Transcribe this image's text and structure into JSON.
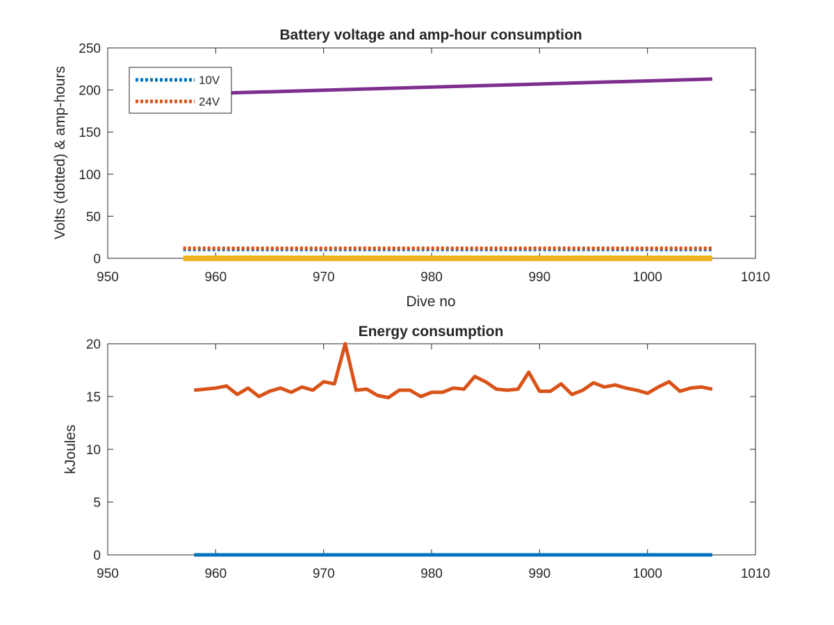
{
  "chart_data": [
    {
      "type": "line",
      "title": "Battery voltage and amp-hour consumption",
      "xlabel": "Dive no",
      "ylabel": "Volts (dotted) & amp-hours",
      "xlim": [
        950,
        1010
      ],
      "ylim": [
        0,
        250
      ],
      "xticks": [
        950,
        960,
        970,
        980,
        990,
        1000,
        1010
      ],
      "yticks": [
        0,
        50,
        100,
        150,
        200,
        250
      ],
      "grid": false,
      "legend": {
        "placement": "top-left",
        "entries": [
          "10V",
          "24V"
        ]
      },
      "series": [
        {
          "name": "10V",
          "style": "dotted",
          "color": "#0072BD",
          "x": [
            957,
            1006
          ],
          "y": [
            10.5,
            10.5
          ]
        },
        {
          "name": "24V",
          "style": "dotted",
          "color": "#D95319",
          "x": [
            957,
            1006
          ],
          "y": [
            12,
            12
          ]
        },
        {
          "style": "solid",
          "color": "#7E2F8E",
          "x": [
            957,
            1006
          ],
          "y": [
            195,
            213
          ]
        },
        {
          "style": "solid",
          "color": "#EDB120",
          "x": [
            957,
            1006
          ],
          "y": [
            0,
            0
          ]
        }
      ]
    },
    {
      "type": "line",
      "title": "Energy consumption",
      "xlabel": "",
      "ylabel": "kJoules",
      "xlim": [
        950,
        1010
      ],
      "ylim": [
        0,
        20
      ],
      "xticks": [
        950,
        960,
        970,
        980,
        990,
        1000,
        1010
      ],
      "yticks": [
        0,
        5,
        10,
        15,
        20
      ],
      "grid": false,
      "series": [
        {
          "style": "solid",
          "color": "#0072BD",
          "x": [
            958,
            1006
          ],
          "y": [
            0,
            0
          ]
        },
        {
          "style": "solid",
          "color": "#D95319",
          "x": [
            958,
            959,
            960,
            961,
            962,
            963,
            964,
            965,
            966,
            967,
            968,
            969,
            970,
            971,
            972,
            973,
            974,
            975,
            976,
            977,
            978,
            979,
            980,
            981,
            982,
            983,
            984,
            985,
            986,
            987,
            988,
            989,
            990,
            991,
            992,
            993,
            994,
            995,
            996,
            997,
            998,
            999,
            1000,
            1001,
            1002,
            1003,
            1004,
            1005,
            1006
          ],
          "y": [
            15.6,
            15.7,
            15.8,
            16.0,
            15.2,
            15.8,
            15.0,
            15.5,
            15.8,
            15.4,
            15.9,
            15.6,
            16.4,
            16.2,
            20.0,
            15.6,
            15.7,
            15.1,
            14.9,
            15.6,
            15.6,
            15.0,
            15.4,
            15.4,
            15.8,
            15.7,
            16.9,
            16.4,
            15.7,
            15.6,
            15.7,
            17.3,
            15.5,
            15.5,
            16.2,
            15.2,
            15.6,
            16.3,
            15.9,
            16.1,
            15.8,
            15.6,
            15.3,
            15.9,
            16.4,
            15.5,
            15.8,
            15.9,
            15.7
          ]
        }
      ]
    }
  ]
}
